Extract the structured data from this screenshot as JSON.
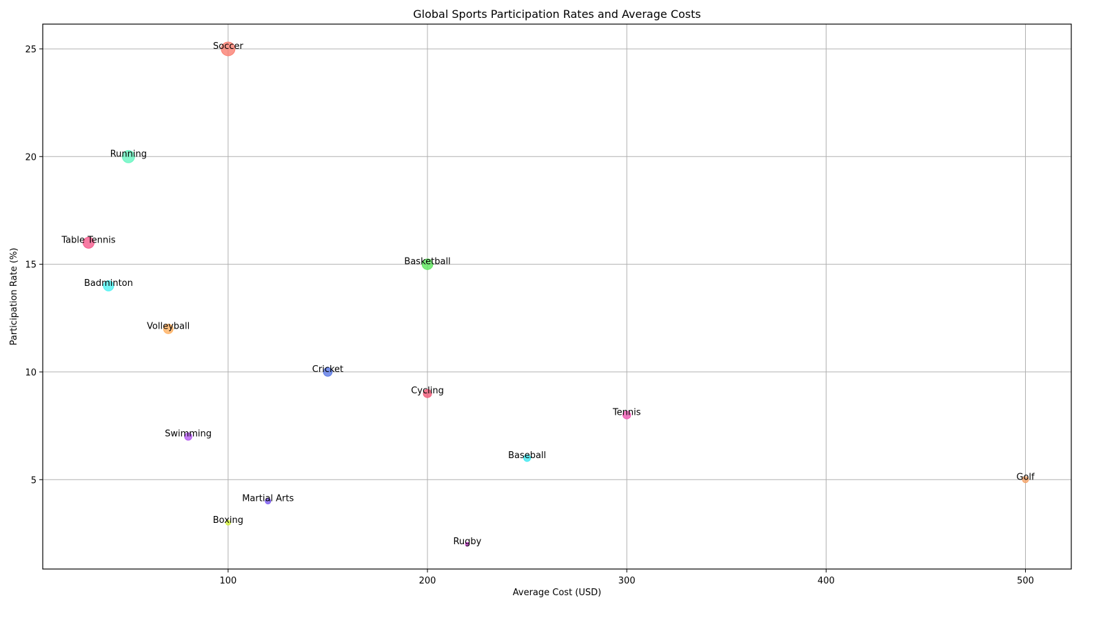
{
  "chart_data": {
    "type": "scatter",
    "title": "Global Sports Participation Rates and Average Costs",
    "xlabel": "Average Cost (USD)",
    "ylabel": "Participation Rate (%)",
    "xlim": [
      7,
      523
    ],
    "ylim": [
      0.85,
      26.15
    ],
    "xticks": [
      100,
      200,
      300,
      400,
      500
    ],
    "yticks": [
      5,
      10,
      15,
      20,
      25
    ],
    "grid": true,
    "points": [
      {
        "label": "Soccer",
        "x": 100,
        "y": 25,
        "color": "#fa8072",
        "size": 25
      },
      {
        "label": "Running",
        "x": 50,
        "y": 20,
        "color": "#66f5c0",
        "size": 20
      },
      {
        "label": "Table Tennis",
        "x": 30,
        "y": 16,
        "color": "#f55a8c",
        "size": 16
      },
      {
        "label": "Basketball",
        "x": 200,
        "y": 15,
        "color": "#5ce65c",
        "size": 15
      },
      {
        "label": "Badminton",
        "x": 40,
        "y": 14,
        "color": "#4df2f2",
        "size": 14
      },
      {
        "label": "Volleyball",
        "x": 70,
        "y": 12,
        "color": "#ffb060",
        "size": 12
      },
      {
        "label": "Cricket",
        "x": 150,
        "y": 10,
        "color": "#5c7ae6",
        "size": 10
      },
      {
        "label": "Cycling",
        "x": 200,
        "y": 9,
        "color": "#f05a78",
        "size": 9
      },
      {
        "label": "Tennis",
        "x": 300,
        "y": 8,
        "color": "#f05ab4",
        "size": 8
      },
      {
        "label": "Swimming",
        "x": 80,
        "y": 7,
        "color": "#b45af0",
        "size": 7
      },
      {
        "label": "Baseball",
        "x": 250,
        "y": 6,
        "color": "#40e8f0",
        "size": 6
      },
      {
        "label": "Golf",
        "x": 500,
        "y": 5,
        "color": "#f4a46a",
        "size": 5
      },
      {
        "label": "Martial Arts",
        "x": 120,
        "y": 4,
        "color": "#7a5af0",
        "size": 4
      },
      {
        "label": "Boxing",
        "x": 100,
        "y": 3,
        "color": "#d4f040",
        "size": 3
      },
      {
        "label": "Rugby",
        "x": 220,
        "y": 2,
        "color": "#d24ad8",
        "size": 2
      }
    ]
  }
}
